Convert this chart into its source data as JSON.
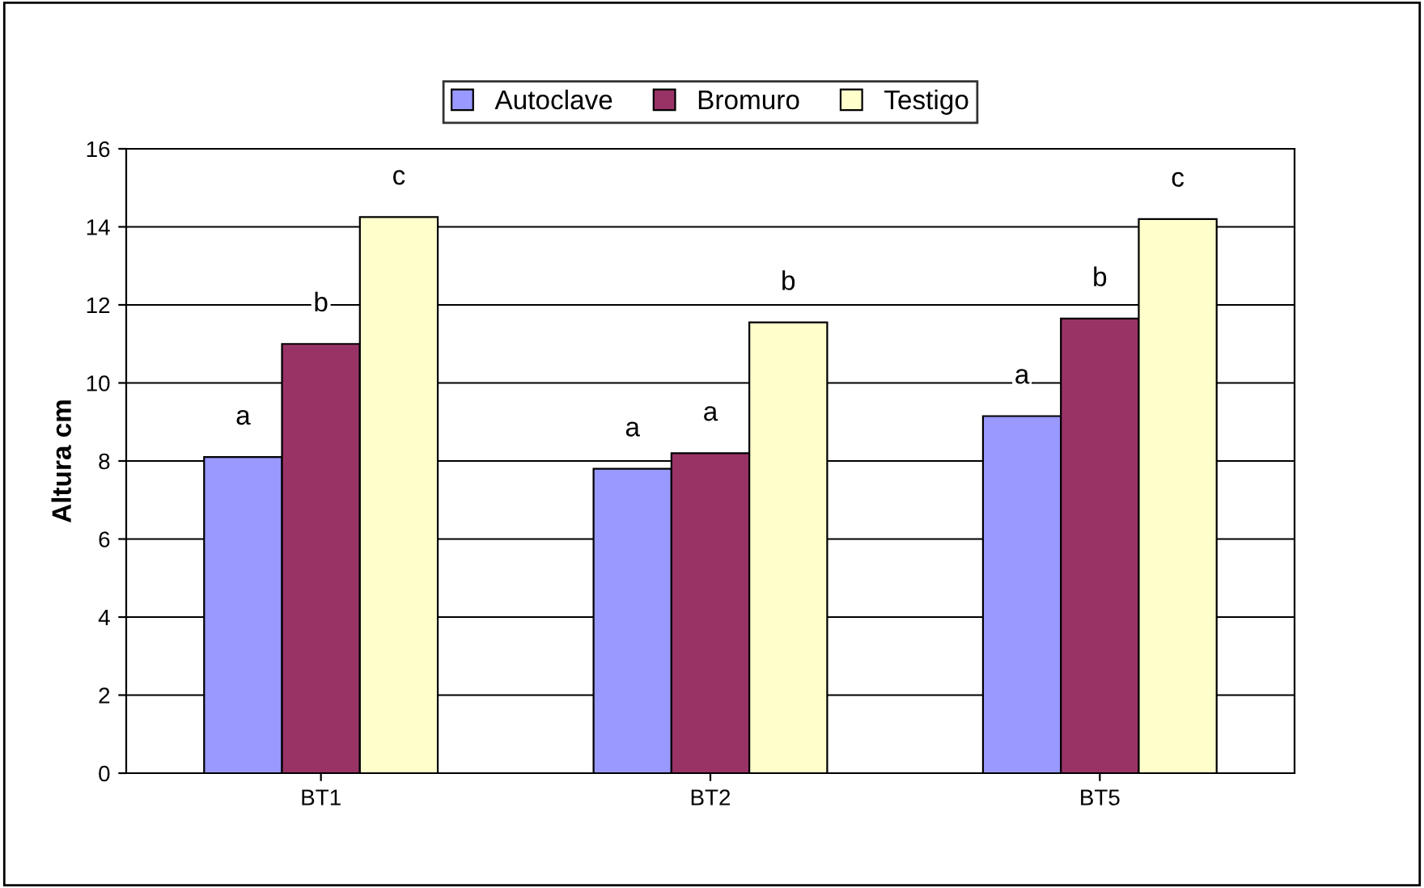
{
  "chart_data": {
    "type": "bar",
    "ylabel": "Altura cm",
    "categories": [
      "BT1",
      "BT2",
      "BT5"
    ],
    "series": [
      {
        "name": "Autoclave",
        "color": "#9999ff",
        "values": [
          8.1,
          7.8,
          9.15
        ],
        "value_labels": [
          "a",
          "a",
          "a"
        ]
      },
      {
        "name": "Bromuro",
        "color": "#993366",
        "values": [
          11.0,
          8.2,
          11.65
        ],
        "value_labels": [
          "b",
          "a",
          "b"
        ]
      },
      {
        "name": "Testigo",
        "color": "#ffffcc",
        "values": [
          14.25,
          11.55,
          14.2
        ],
        "value_labels": [
          "c",
          "b",
          "c"
        ]
      }
    ],
    "ylim": [
      0,
      16
    ],
    "yticks": [
      0,
      2,
      4,
      6,
      8,
      10,
      12,
      14,
      16
    ],
    "grid": "y",
    "legend": "top"
  }
}
